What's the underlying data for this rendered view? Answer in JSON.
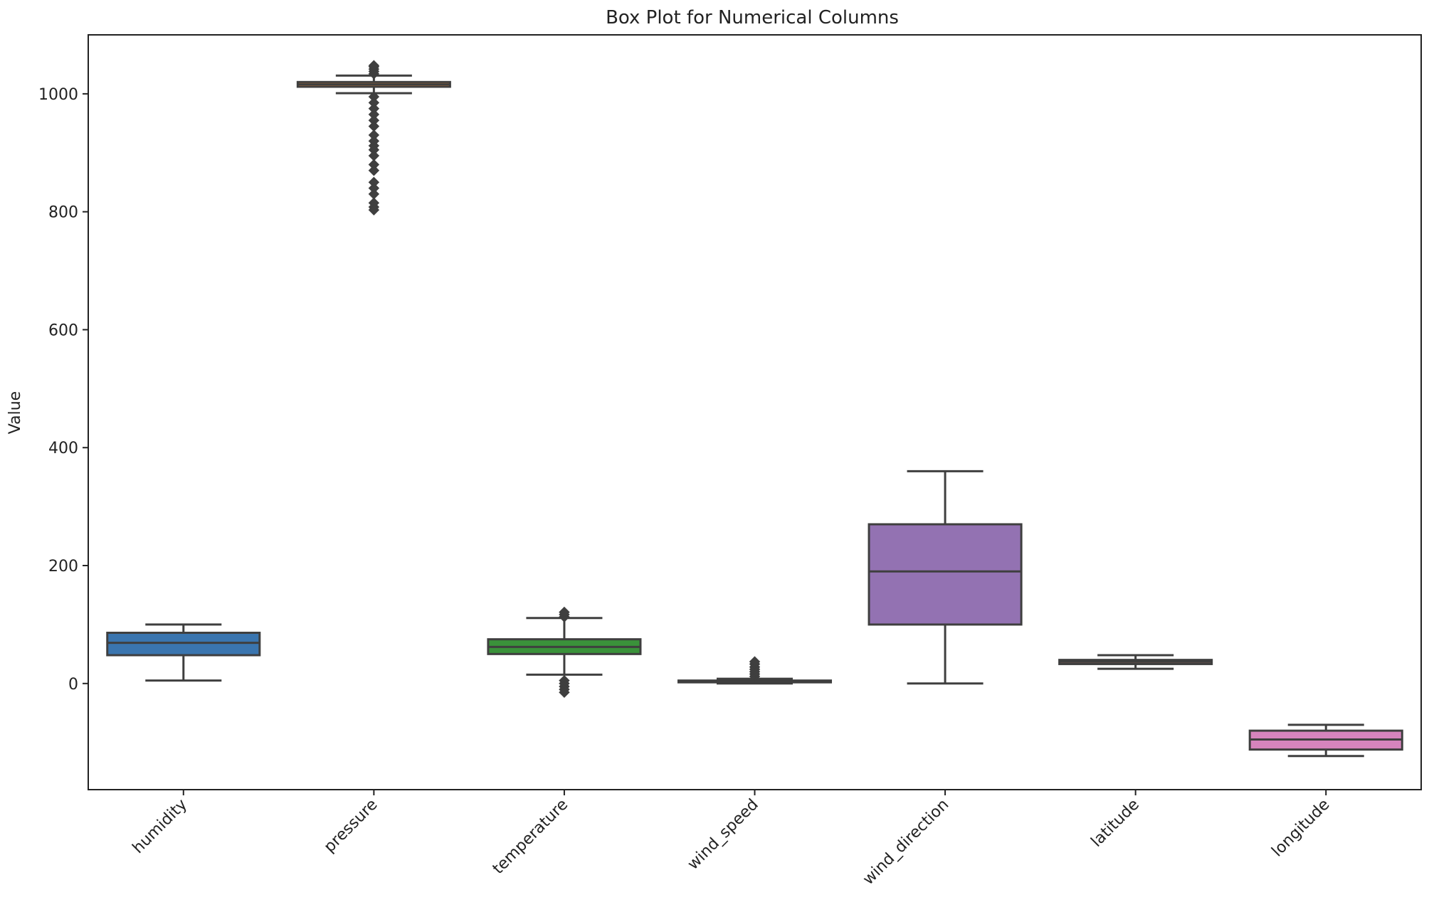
{
  "chart_data": {
    "type": "box",
    "title": "Box Plot for Numerical Columns",
    "xlabel": "",
    "ylabel": "Value",
    "ylim": [
      -180,
      1100
    ],
    "yticks": [
      0,
      200,
      400,
      600,
      800,
      1000
    ],
    "grid": false,
    "legend": "none",
    "categories": [
      "humidity",
      "pressure",
      "temperature",
      "wind_speed",
      "wind_direction",
      "latitude",
      "longitude"
    ],
    "boxes": [
      {
        "name": "humidity",
        "color": "#3a75af",
        "whisker_low": 5,
        "q1": 48,
        "median": 69,
        "q3": 86,
        "whisker_high": 100,
        "outliers": []
      },
      {
        "name": "pressure",
        "color": "#e1812c",
        "whisker_low": 1001,
        "q1": 1012,
        "median": 1016,
        "q3": 1020,
        "whisker_high": 1031,
        "outliers": [
          1034,
          1038,
          1042,
          1046,
          1048,
          995,
          985,
          975,
          965,
          955,
          945,
          930,
          920,
          912,
          905,
          895,
          880,
          870,
          850,
          840,
          830,
          815,
          808,
          803
        ]
      },
      {
        "name": "temperature",
        "color": "#3a923a",
        "whisker_low": 15,
        "q1": 50,
        "median": 62,
        "q3": 75,
        "whisker_high": 111,
        "outliers": [
          113,
          117,
          121,
          5,
          0,
          -5,
          -10,
          -15
        ]
      },
      {
        "name": "wind_speed",
        "color": "#c03d3e",
        "whisker_low": 0,
        "q1": 2,
        "median": 3,
        "q3": 5,
        "whisker_high": 8,
        "outliers": [
          12,
          16,
          20,
          24,
          28,
          33,
          37
        ]
      },
      {
        "name": "wind_direction",
        "color": "#9372b2",
        "whisker_low": 0,
        "q1": 100,
        "median": 190,
        "q3": 270,
        "whisker_high": 360,
        "outliers": []
      },
      {
        "name": "latitude",
        "color": "#845b53",
        "whisker_low": 25,
        "q1": 33,
        "median": 37,
        "q3": 40,
        "whisker_high": 48,
        "outliers": []
      },
      {
        "name": "longitude",
        "color": "#d684bd",
        "whisker_low": -123,
        "q1": -112,
        "median": -95,
        "q3": -80,
        "whisker_high": -70,
        "outliers": []
      }
    ]
  }
}
